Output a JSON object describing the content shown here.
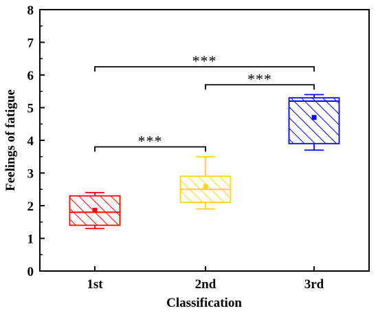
{
  "chart_data": {
    "type": "box",
    "title": "",
    "xlabel": "Classification",
    "ylabel": "Feelings of fatigue",
    "ylim": [
      0,
      8
    ],
    "yticks": [
      0,
      1,
      2,
      3,
      4,
      5,
      6,
      7,
      8
    ],
    "grid": false,
    "legend": "none",
    "categories": [
      "1st",
      "2nd",
      "3rd"
    ],
    "boxes": [
      {
        "category": "1st",
        "color": "#ff0000",
        "whisker_low": 1.3,
        "q1": 1.4,
        "median": 1.8,
        "q3": 2.3,
        "whisker_high": 2.4,
        "mean": 1.86
      },
      {
        "category": "2nd",
        "color": "#ffd21f",
        "whisker_low": 1.9,
        "q1": 2.1,
        "median": 2.5,
        "q3": 2.9,
        "whisker_high": 3.5,
        "mean": 2.58
      },
      {
        "category": "3rd",
        "color": "#0000ff",
        "whisker_low": 3.7,
        "q1": 3.9,
        "median": 5.2,
        "q3": 5.3,
        "whisker_high": 5.4,
        "mean": 4.7
      }
    ],
    "significance": [
      {
        "from": "1st",
        "to": "2nd",
        "y": 3.8,
        "label": "***"
      },
      {
        "from": "2nd",
        "to": "3rd",
        "y": 5.7,
        "label": "***"
      },
      {
        "from": "1st",
        "to": "3rd",
        "y": 6.25,
        "label": "***"
      }
    ]
  }
}
